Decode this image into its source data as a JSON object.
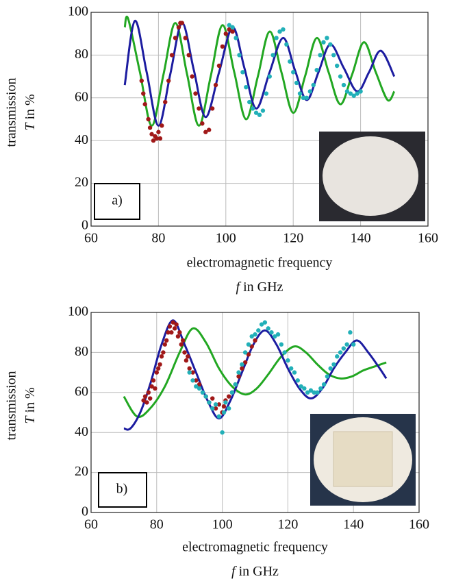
{
  "chart_data": [
    {
      "type": "line",
      "xlabel": "electromagnetic frequency",
      "xsymbol": "f",
      "xunit": "in GHz",
      "ylabel": "transmission",
      "ysymbol": "T",
      "yunit": "in %",
      "panel_label": "a)",
      "xlim": [
        60,
        160
      ],
      "ylim": [
        0,
        100
      ],
      "xticks": [
        60,
        80,
        100,
        120,
        140,
        160
      ],
      "yticks": [
        0,
        20,
        40,
        60,
        80,
        100
      ],
      "grid": true,
      "series": [
        {
          "type": "line",
          "color": "#22a722",
          "x": [
            70,
            71,
            74.5,
            78,
            81.5,
            85,
            88.5,
            92,
            95.5,
            99,
            102.5,
            106,
            109.5,
            113,
            116.5,
            120,
            123.5,
            127,
            130.5,
            134,
            137.5,
            141,
            144.5,
            148,
            150
          ],
          "values": [
            93,
            97,
            72,
            47,
            71,
            95,
            71,
            47,
            70,
            94,
            72,
            50,
            70,
            91,
            72,
            53,
            70,
            88,
            72,
            57,
            71,
            86,
            72,
            59,
            63
          ]
        },
        {
          "type": "line",
          "color": "#1c1ca0",
          "x": [
            70,
            73,
            76.5,
            80,
            83.5,
            87,
            90.5,
            94,
            98,
            102,
            105.5,
            109,
            113,
            117,
            120.5,
            124,
            127.5,
            131,
            135,
            139,
            142.5,
            146,
            150
          ],
          "values": [
            66,
            96,
            72,
            47,
            71,
            95,
            73,
            51,
            72,
            93,
            74,
            55,
            72,
            88,
            73,
            59,
            72,
            85,
            74,
            63,
            72,
            82,
            70
          ]
        },
        {
          "type": "scatter",
          "color": "#a01818",
          "x": [
            75,
            75.5,
            76,
            77,
            77.5,
            78,
            78.5,
            79,
            79.5,
            80,
            80.5,
            81,
            82,
            83,
            84,
            85,
            86,
            86.5,
            87,
            88,
            89,
            90,
            91,
            92,
            93,
            94,
            95,
            96,
            97,
            98,
            99,
            100,
            101,
            102
          ],
          "values": [
            68,
            62,
            57,
            50,
            46,
            43,
            40,
            42,
            41,
            44,
            41,
            47,
            58,
            68,
            80,
            88,
            93,
            95,
            95,
            88,
            80,
            70,
            62,
            55,
            48,
            44,
            45,
            55,
            66,
            75,
            84,
            90,
            92,
            91
          ]
        },
        {
          "type": "scatter",
          "color": "#22b0b8",
          "x": [
            101,
            102,
            103,
            104,
            105,
            106,
            107,
            108,
            109,
            110,
            111,
            112,
            113,
            114,
            115,
            116,
            117,
            118,
            119,
            120,
            121,
            122,
            123,
            124,
            125,
            126,
            127,
            128,
            129,
            130,
            131,
            132,
            133,
            134,
            135,
            136,
            137,
            138,
            139,
            140
          ],
          "values": [
            94,
            93,
            88,
            80,
            72,
            65,
            58,
            55,
            53,
            52,
            54,
            62,
            70,
            80,
            88,
            91,
            92,
            85,
            77,
            72,
            67,
            62,
            60,
            60,
            63,
            66,
            73,
            80,
            86,
            88,
            85,
            80,
            75,
            70,
            66,
            63,
            62,
            61,
            62,
            63
          ]
        }
      ]
    },
    {
      "type": "line",
      "xlabel": "electromagnetic frequency",
      "xsymbol": "f",
      "xunit": "in GHz",
      "ylabel": "transmission",
      "ysymbol": "T",
      "yunit": "in %",
      "panel_label": "b)",
      "xlim": [
        60,
        160
      ],
      "ylim": [
        0,
        100
      ],
      "xticks": [
        60,
        80,
        100,
        120,
        140,
        160
      ],
      "yticks": [
        0,
        20,
        40,
        60,
        80,
        100
      ],
      "grid": true,
      "series": [
        {
          "type": "line",
          "color": "#22a722",
          "x": [
            70,
            74,
            78,
            82.5,
            87,
            91,
            95,
            99,
            103,
            107,
            110.5,
            114,
            118,
            122,
            125.5,
            129,
            132.5,
            136,
            139.5,
            143,
            146.5,
            150
          ],
          "values": [
            58,
            48,
            52,
            63,
            80,
            92,
            85,
            72,
            63,
            59,
            62,
            69,
            78,
            83,
            80,
            74,
            69,
            67,
            68,
            71,
            73,
            75
          ]
        },
        {
          "type": "line",
          "color": "#1c1ca0",
          "x": [
            70,
            72,
            75,
            78,
            81.5,
            85,
            88.5,
            92,
            95.5,
            99,
            102.5,
            106,
            109.5,
            113,
            116.5,
            120,
            123.5,
            127,
            130.5,
            134,
            137.5,
            141,
            144.5,
            148,
            150
          ],
          "values": [
            42,
            42,
            50,
            64,
            84,
            96,
            84,
            70,
            56,
            47,
            56,
            70,
            84,
            91,
            84,
            72,
            62,
            57,
            62,
            72,
            80,
            86,
            80,
            72,
            67
          ]
        },
        {
          "type": "scatter",
          "color": "#a01818",
          "x": [
            76,
            76.5,
            77,
            77.5,
            78,
            78.5,
            79,
            79.5,
            80,
            80.5,
            81,
            81.5,
            82,
            82.5,
            83,
            83.5,
            84,
            84.5,
            85,
            85.5,
            86,
            86.5,
            87,
            87.5,
            88,
            88.5,
            89,
            89.5,
            90,
            91,
            92,
            93,
            95,
            96,
            97,
            98,
            99,
            100,
            100.5,
            101,
            102,
            103,
            104,
            105,
            106,
            107,
            108,
            109,
            110
          ],
          "values": [
            56,
            58,
            55,
            60,
            57,
            63,
            66,
            62,
            70,
            72,
            74,
            78,
            80,
            84,
            86,
            90,
            93,
            90,
            95,
            92,
            94,
            88,
            90,
            84,
            86,
            80,
            76,
            78,
            72,
            70,
            66,
            64,
            58,
            55,
            57,
            52,
            54,
            50,
            53,
            56,
            58,
            60,
            64,
            68,
            72,
            75,
            79,
            83,
            86
          ]
        },
        {
          "type": "scatter",
          "color": "#22b0b8",
          "x": [
            90,
            91,
            92,
            93,
            94,
            95,
            96,
            97,
            98,
            99,
            100,
            100.5,
            101,
            102,
            103,
            104,
            105,
            106,
            107,
            108,
            109,
            110,
            111,
            112,
            113,
            114,
            115,
            116,
            117,
            118,
            119,
            120,
            121,
            122,
            123,
            124,
            125,
            126,
            127,
            128,
            129,
            130,
            131,
            132,
            133,
            134,
            135,
            136,
            137,
            138,
            139,
            140
          ],
          "values": [
            70,
            66,
            63,
            62,
            60,
            58,
            55,
            52,
            54,
            48,
            40,
            50,
            55,
            52,
            60,
            64,
            70,
            74,
            80,
            84,
            88,
            89,
            91,
            94,
            95,
            92,
            90,
            88,
            89,
            84,
            80,
            76,
            72,
            70,
            66,
            63,
            62,
            60,
            61,
            60,
            60,
            62,
            64,
            68,
            72,
            74,
            78,
            80,
            82,
            84,
            90,
            84
          ]
        }
      ]
    }
  ]
}
